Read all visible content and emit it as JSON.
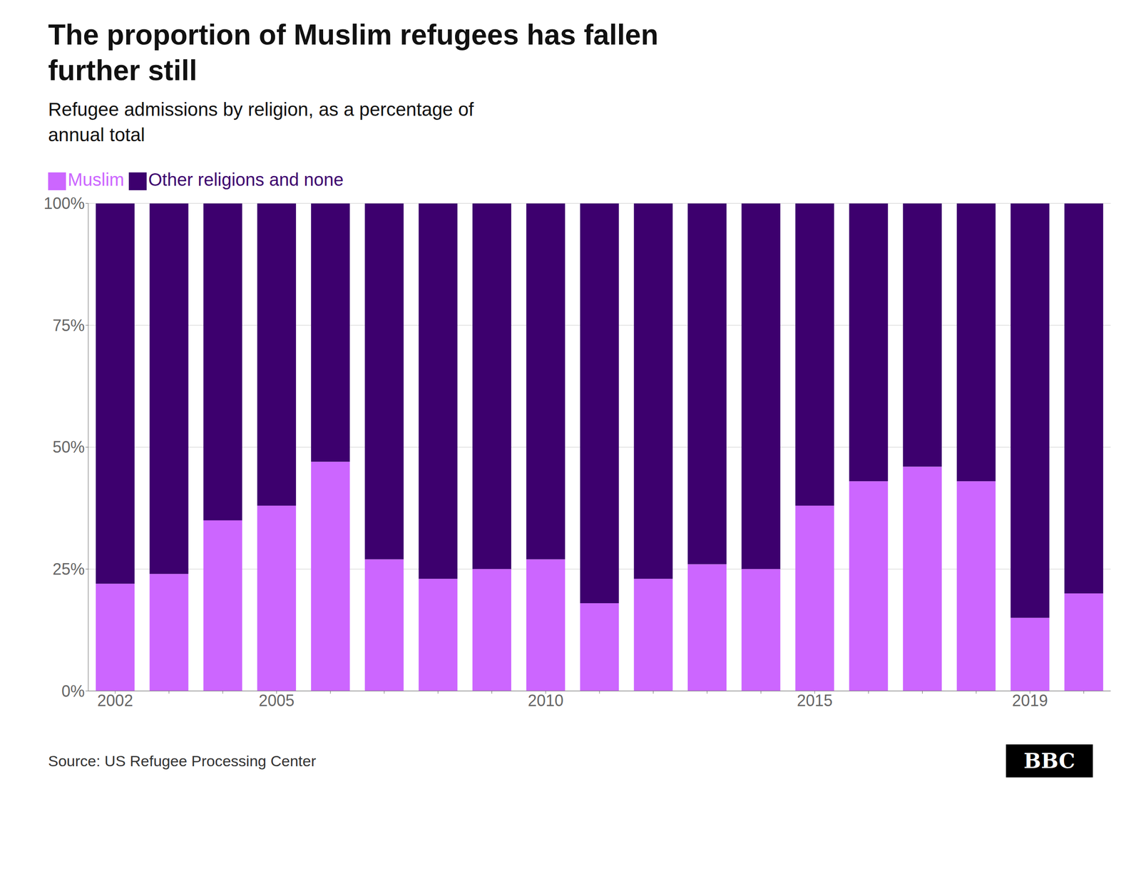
{
  "chart_data": {
    "type": "bar",
    "title": "The proportion of Muslim refugees has fallen\nfurther still",
    "subtitle": "Refugee admissions by religion, as a percentage of\nannual total",
    "annotations": [
      "Source: US Refugee Processing Center",
      "BBC"
    ],
    "categories": [
      "2002",
      null,
      null,
      "2005",
      null,
      null,
      null,
      null,
      "2010",
      null,
      null,
      null,
      null,
      "2015",
      null,
      null,
      null,
      "2019",
      null
    ],
    "series": [
      {
        "name": "Muslim",
        "color": "#cc66ff",
        "values": [
          22,
          24,
          35,
          38,
          47,
          27,
          23,
          25,
          27,
          18,
          23,
          26,
          25,
          38,
          43,
          46,
          43,
          15,
          20
        ]
      },
      {
        "name": "Other religions and none",
        "color": "#3d006e",
        "values": [
          78,
          76,
          65,
          62,
          53,
          73,
          77,
          75,
          73,
          82,
          77,
          74,
          75,
          62,
          57,
          54,
          57,
          85,
          80
        ]
      }
    ],
    "stacked": true,
    "ylim": [
      0,
      100
    ],
    "yticks": [
      {
        "value": 0,
        "label": "0%"
      },
      {
        "value": 25,
        "label": "25%"
      },
      {
        "value": 50,
        "label": "50%"
      },
      {
        "value": 75,
        "label": "75%"
      },
      {
        "value": 100,
        "label": "100%"
      }
    ],
    "grid": true,
    "legend": "top"
  }
}
